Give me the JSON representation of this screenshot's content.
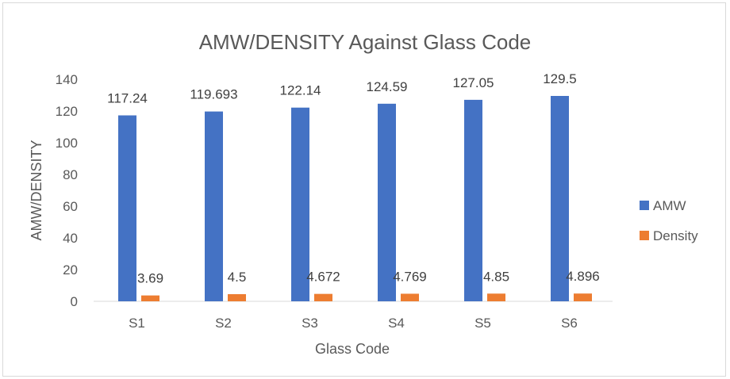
{
  "chart_data": {
    "type": "bar",
    "title": "AMW/DENSITY Against Glass Code",
    "xlabel": "Glass Code",
    "ylabel": "AMW/DENSITY",
    "categories": [
      "S1",
      "S2",
      "S3",
      "S4",
      "S5",
      "S6"
    ],
    "series": [
      {
        "name": "AMW",
        "color": "#4472c4",
        "values": [
          117.24,
          119.693,
          122.14,
          124.59,
          127.05,
          129.5
        ],
        "labels": [
          "117.24",
          "119.693",
          "122.14",
          "124.59",
          "127.05",
          "129.5"
        ]
      },
      {
        "name": "Density",
        "color": "#ed7d31",
        "values": [
          3.69,
          4.5,
          4.672,
          4.769,
          4.85,
          4.896
        ],
        "labels": [
          "3.69",
          "4.5",
          "4.672",
          "4.769",
          "4.85",
          "4.896"
        ]
      }
    ],
    "ylim": [
      0,
      140
    ],
    "yticks": [
      0,
      20,
      40,
      60,
      80,
      100,
      120,
      140
    ],
    "ytick_labels": [
      "0",
      "20",
      "40",
      "60",
      "80",
      "100",
      "120",
      "140"
    ],
    "grid": false,
    "legend_position": "right"
  }
}
